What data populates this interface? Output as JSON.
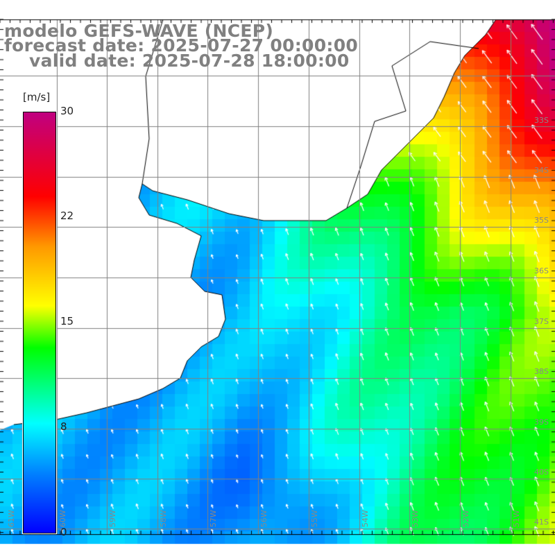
{
  "header": {
    "model": "modelo GEFS-WAVE (NCEP)",
    "forecast_date": "forecast date: 2025-07-27 00:00:00",
    "valid_date": "valid date: 2025-07-28 18:00:00"
  },
  "colorbar": {
    "unit": "[m/s]",
    "labels": [
      "30",
      "22",
      "15",
      "8",
      "0"
    ],
    "min": 0,
    "max": 30
  },
  "axes": {
    "longitudes": [
      "61W",
      "60W",
      "59W",
      "58W",
      "57W",
      "56W",
      "55W",
      "54W",
      "53W",
      "52W",
      "51W"
    ],
    "latitudes": [
      "33S",
      "34S",
      "35S",
      "36S",
      "37S",
      "38S",
      "39S",
      "40S",
      "41S"
    ]
  },
  "colors": {
    "land": "#ffffff",
    "grid": "#808080",
    "coast": "#000000",
    "arrow": "#ffffff",
    "title": "#808080"
  }
}
